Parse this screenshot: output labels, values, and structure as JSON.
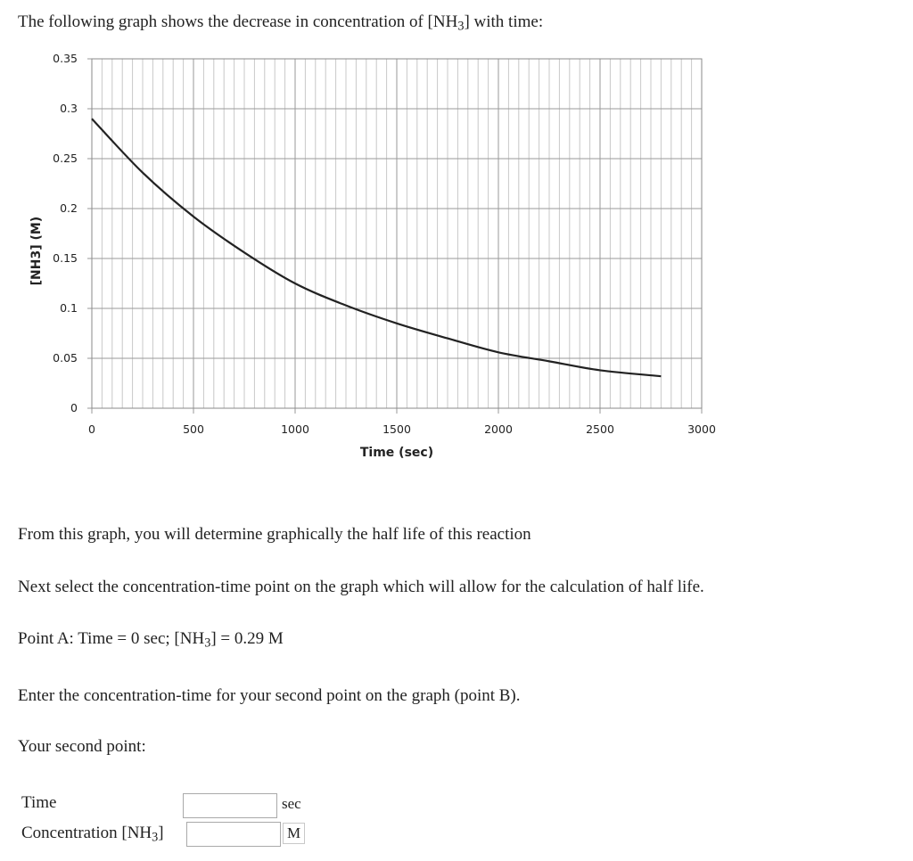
{
  "question": {
    "intro_pre": "The following graph shows the decrease in concentration of [NH",
    "intro_sub": "3",
    "intro_post": "] with time:",
    "line1": "From this graph, you will determine graphically the half life of this reaction",
    "line2": "Next select the concentration-time point on the graph which will allow for the calculation of half life.",
    "pointA_pre": "Point A: Time = 0 sec; [NH",
    "pointA_sub": "3",
    "pointA_post": "] = 0.29 M",
    "line3": "Enter the concentration-time for your second point on the graph (point B).",
    "line4": "Your second point:"
  },
  "form": {
    "time_label": "Time",
    "time_value": "",
    "time_unit": "sec",
    "conc_label_pre": "Concentration [NH",
    "conc_label_sub": "3",
    "conc_label_post": "]",
    "conc_value": "",
    "conc_unit": "M"
  },
  "chart_data": {
    "type": "line",
    "title": "",
    "xlabel": "Time (sec)",
    "ylabel": "[NH3] (M)",
    "xlim": [
      0,
      3000
    ],
    "ylim": [
      0,
      0.35
    ],
    "x_ticks": [
      "0",
      "500",
      "1000",
      "1500",
      "2000",
      "2500",
      "3000"
    ],
    "y_ticks": [
      "0",
      "0.05",
      "0.1",
      "0.15",
      "0.2",
      "0.25",
      "0.3",
      "0.35"
    ],
    "grid": true,
    "legend": "none",
    "line_color": "#222222",
    "grid_color": "#c8c8c8",
    "series": [
      {
        "x": [
          0,
          250,
          500,
          750,
          1000,
          1250,
          1500,
          1750,
          2000,
          2250,
          2500,
          2800
        ],
        "values": [
          0.29,
          0.236,
          0.192,
          0.156,
          0.125,
          0.103,
          0.085,
          0.07,
          0.056,
          0.047,
          0.038,
          0.032
        ]
      }
    ]
  }
}
